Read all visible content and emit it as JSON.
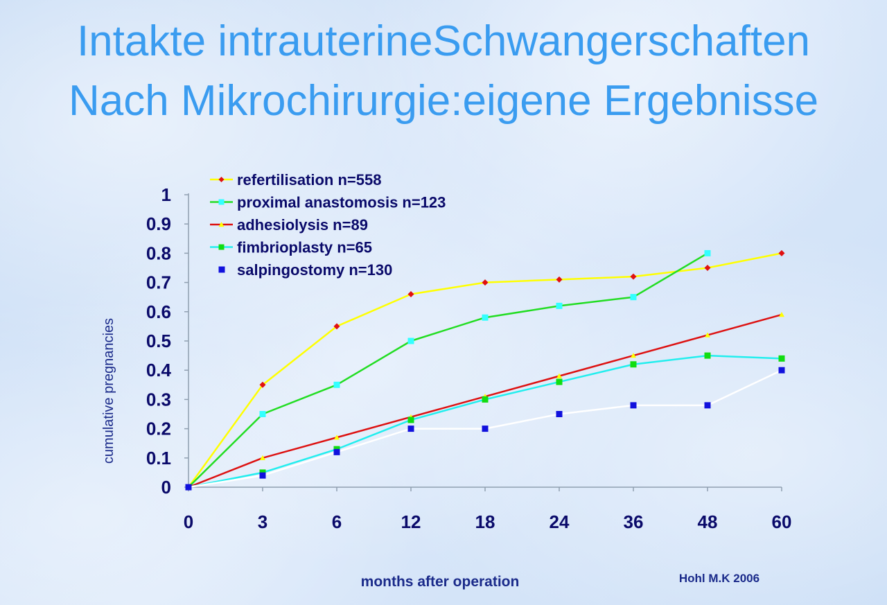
{
  "title": {
    "line1": "Intakte intrauterineSchwangerschaften",
    "line2": "Nach Mikrochirurgie:eigene Ergebnisse"
  },
  "credit": "Hohl M.K 2006",
  "chart_data": {
    "type": "line",
    "categories": [
      "0",
      "3",
      "6",
      "12",
      "18",
      "24",
      "36",
      "48",
      "60"
    ],
    "xlabel": "months after operation",
    "ylabel": "cumulative pregnancies",
    "ylim": [
      0,
      1
    ],
    "yticks": [
      "0",
      "0.1",
      "0.2",
      "0.3",
      "0.4",
      "0.5",
      "0.6",
      "0.7",
      "0.8",
      "0.9",
      "1"
    ],
    "grid": false,
    "legend_position": "top-left",
    "series": [
      {
        "name": "refertilisation n=558",
        "line_color": "#ffff00",
        "marker_color": "#e01010",
        "marker": "diamond",
        "values": [
          0,
          0.35,
          0.55,
          0.66,
          0.7,
          0.71,
          0.72,
          0.75,
          0.8
        ]
      },
      {
        "name": "proximal anastomosis n=123",
        "line_color": "#22dd22",
        "marker_color": "#33ffff",
        "marker": "square",
        "values": [
          0,
          0.25,
          0.35,
          0.5,
          0.58,
          0.62,
          0.65,
          0.8,
          null
        ]
      },
      {
        "name": "adhesiolysis n=89",
        "line_color": "#dd1111",
        "marker_color": "#ffff00",
        "marker": "triangle",
        "values": [
          0,
          0.1,
          0.17,
          0.24,
          0.31,
          0.38,
          0.45,
          0.52,
          0.59
        ]
      },
      {
        "name": "fimbrioplasty n=65",
        "line_color": "#22eeee",
        "marker_color": "#11dd11",
        "marker": "square",
        "values": [
          0,
          0.05,
          0.13,
          0.23,
          0.3,
          0.36,
          0.42,
          0.45,
          0.44
        ]
      },
      {
        "name": "salpingostomy n=130",
        "line_color": "#ffffff",
        "marker_color": "#1111dd",
        "marker": "square",
        "values": [
          0,
          0.04,
          0.12,
          0.2,
          0.2,
          0.25,
          0.28,
          0.28,
          0.4
        ]
      }
    ]
  }
}
